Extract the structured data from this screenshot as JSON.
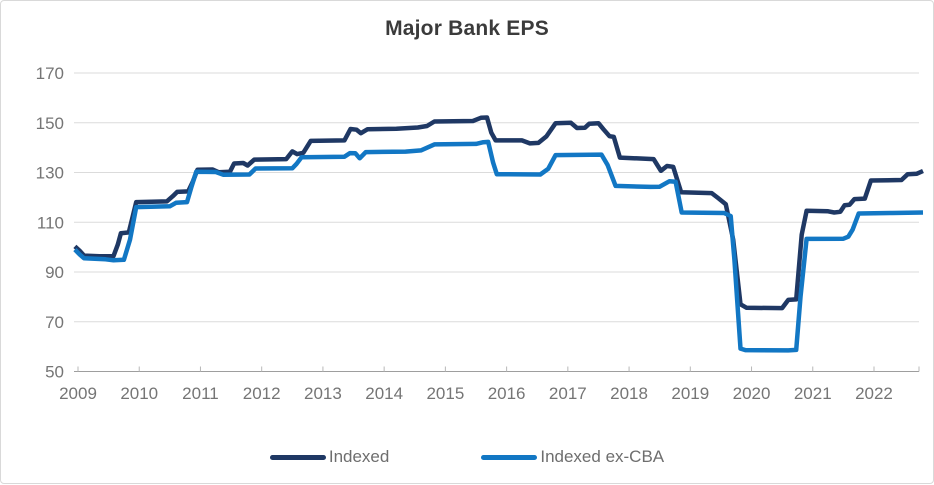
{
  "chart_data": {
    "type": "line",
    "title": "Major Bank EPS",
    "xlabel": "",
    "ylabel": "",
    "x_ticks": [
      "2009",
      "2010",
      "2011",
      "2012",
      "2013",
      "2014",
      "2015",
      "2016",
      "2017",
      "2018",
      "2019",
      "2020",
      "2021",
      "2022"
    ],
    "y_ticks": [
      50,
      70,
      90,
      110,
      130,
      150,
      170
    ],
    "ylim": [
      50,
      170
    ],
    "xlim": [
      2008.93,
      2022.95
    ],
    "grid": true,
    "legend_position": "bottom",
    "series": [
      {
        "name": "Indexed",
        "color": "#1F3864",
        "points": [
          [
            2008.95,
            100.3
          ],
          [
            2009.03,
            98.5
          ],
          [
            2009.1,
            96.6
          ],
          [
            2009.35,
            96.3
          ],
          [
            2009.58,
            96.4
          ],
          [
            2009.65,
            101
          ],
          [
            2009.7,
            105.6
          ],
          [
            2009.83,
            105.9
          ],
          [
            2009.88,
            111
          ],
          [
            2009.95,
            118.1
          ],
          [
            2010.45,
            118.4
          ],
          [
            2010.55,
            120.5
          ],
          [
            2010.62,
            122.2
          ],
          [
            2010.8,
            122.4
          ],
          [
            2010.87,
            126
          ],
          [
            2010.95,
            131.1
          ],
          [
            2011.2,
            131.2
          ],
          [
            2011.3,
            130.1
          ],
          [
            2011.48,
            130.3
          ],
          [
            2011.55,
            133.6
          ],
          [
            2011.7,
            133.8
          ],
          [
            2011.77,
            132.8
          ],
          [
            2011.88,
            135.2
          ],
          [
            2012.4,
            135.4
          ],
          [
            2012.5,
            138.5
          ],
          [
            2012.58,
            137.4
          ],
          [
            2012.68,
            137.9
          ],
          [
            2012.8,
            142.7
          ],
          [
            2013.35,
            142.9
          ],
          [
            2013.45,
            147.5
          ],
          [
            2013.55,
            147.2
          ],
          [
            2013.62,
            145.8
          ],
          [
            2013.73,
            147.4
          ],
          [
            2014.2,
            147.6
          ],
          [
            2014.55,
            148.1
          ],
          [
            2014.7,
            148.7
          ],
          [
            2014.82,
            150.5
          ],
          [
            2015.45,
            150.7
          ],
          [
            2015.58,
            152
          ],
          [
            2015.68,
            152.1
          ],
          [
            2015.75,
            146
          ],
          [
            2015.82,
            142.9
          ],
          [
            2016.25,
            142.9
          ],
          [
            2016.38,
            141.7
          ],
          [
            2016.52,
            141.9
          ],
          [
            2016.65,
            144.5
          ],
          [
            2016.8,
            149.8
          ],
          [
            2017.05,
            150
          ],
          [
            2017.15,
            147.9
          ],
          [
            2017.28,
            148
          ],
          [
            2017.35,
            149.6
          ],
          [
            2017.5,
            149.8
          ],
          [
            2017.58,
            147.4
          ],
          [
            2017.68,
            144.6
          ],
          [
            2017.75,
            144.3
          ],
          [
            2017.85,
            136
          ],
          [
            2018.4,
            135.4
          ],
          [
            2018.52,
            130.7
          ],
          [
            2018.62,
            132.6
          ],
          [
            2018.72,
            132.3
          ],
          [
            2018.85,
            122.1
          ],
          [
            2019.35,
            121.7
          ],
          [
            2019.45,
            119.8
          ],
          [
            2019.58,
            117.2
          ],
          [
            2019.7,
            103
          ],
          [
            2019.82,
            77
          ],
          [
            2019.92,
            75.6
          ],
          [
            2020.5,
            75.5
          ],
          [
            2020.6,
            78.8
          ],
          [
            2020.73,
            79
          ],
          [
            2020.82,
            105
          ],
          [
            2020.9,
            114.6
          ],
          [
            2021.25,
            114.4
          ],
          [
            2021.35,
            113.9
          ],
          [
            2021.45,
            114.2
          ],
          [
            2021.52,
            116.8
          ],
          [
            2021.6,
            117
          ],
          [
            2021.68,
            119.3
          ],
          [
            2021.85,
            119.5
          ],
          [
            2021.95,
            126.8
          ],
          [
            2022.45,
            127
          ],
          [
            2022.55,
            129.3
          ],
          [
            2022.7,
            129.5
          ],
          [
            2022.8,
            130.6
          ]
        ]
      },
      {
        "name": "Indexed ex-CBA",
        "color": "#1277C4",
        "points": [
          [
            2008.95,
            99
          ],
          [
            2009.03,
            97
          ],
          [
            2009.1,
            95.5
          ],
          [
            2009.45,
            95.1
          ],
          [
            2009.58,
            94.7
          ],
          [
            2009.75,
            94.9
          ],
          [
            2009.85,
            103
          ],
          [
            2009.95,
            116.1
          ],
          [
            2010.5,
            116.4
          ],
          [
            2010.6,
            117.8
          ],
          [
            2010.78,
            118.1
          ],
          [
            2010.85,
            124
          ],
          [
            2010.93,
            130.3
          ],
          [
            2011.25,
            130.2
          ],
          [
            2011.37,
            129.1
          ],
          [
            2011.8,
            129.2
          ],
          [
            2011.9,
            131.6
          ],
          [
            2012.5,
            131.7
          ],
          [
            2012.57,
            133.5
          ],
          [
            2012.65,
            136.1
          ],
          [
            2013.35,
            136.3
          ],
          [
            2013.44,
            137.8
          ],
          [
            2013.53,
            137.7
          ],
          [
            2013.6,
            135.7
          ],
          [
            2013.7,
            138.2
          ],
          [
            2014.35,
            138.4
          ],
          [
            2014.6,
            138.9
          ],
          [
            2014.82,
            141.3
          ],
          [
            2015.5,
            141.5
          ],
          [
            2015.62,
            142.2
          ],
          [
            2015.7,
            142.3
          ],
          [
            2015.78,
            134
          ],
          [
            2015.84,
            129.3
          ],
          [
            2016.55,
            129.2
          ],
          [
            2016.68,
            131.5
          ],
          [
            2016.8,
            137
          ],
          [
            2017.55,
            137.2
          ],
          [
            2017.65,
            133
          ],
          [
            2017.78,
            124.6
          ],
          [
            2018.35,
            124.2
          ],
          [
            2018.5,
            124.3
          ],
          [
            2018.58,
            125.4
          ],
          [
            2018.66,
            126.5
          ],
          [
            2018.76,
            126.3
          ],
          [
            2018.86,
            113.9
          ],
          [
            2019.55,
            113.7
          ],
          [
            2019.66,
            112.5
          ],
          [
            2019.72,
            95
          ],
          [
            2019.82,
            59.2
          ],
          [
            2019.9,
            58.6
          ],
          [
            2020.6,
            58.5
          ],
          [
            2020.73,
            58.7
          ],
          [
            2020.8,
            80
          ],
          [
            2020.9,
            103.3
          ],
          [
            2021.5,
            103.4
          ],
          [
            2021.58,
            104.2
          ],
          [
            2021.65,
            107
          ],
          [
            2021.75,
            113.5
          ],
          [
            2022.3,
            113.7
          ],
          [
            2022.8,
            113.9
          ]
        ]
      }
    ]
  },
  "colors": {
    "grid": "#DBDBDB",
    "axis_line": "#9E9E9E",
    "tick_mark": "#B8B8B8",
    "tick_text": "#757575",
    "title_text": "#3B3B3B",
    "legend_text": "#6E6E6E",
    "card_border": "#D9D9D9",
    "background": "#FFFFFF"
  }
}
